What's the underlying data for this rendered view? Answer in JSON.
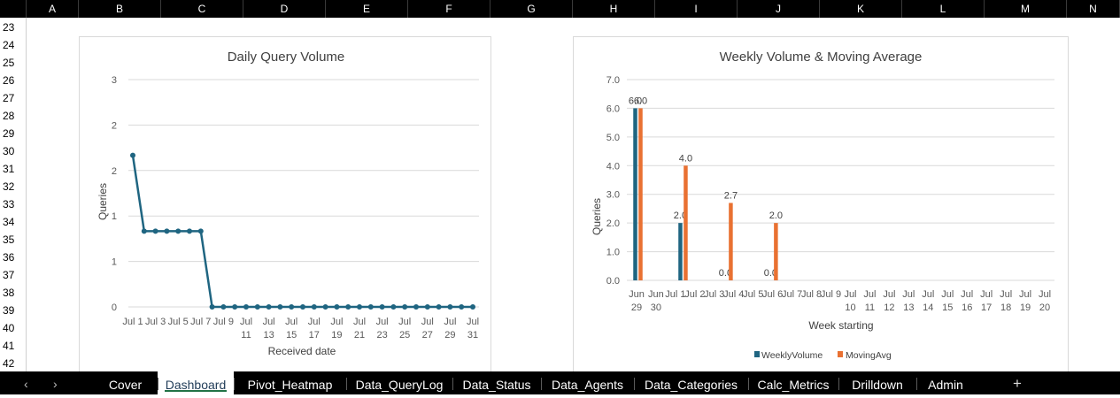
{
  "columns": [
    "A",
    "B",
    "C",
    "D",
    "E",
    "F",
    "G",
    "H",
    "I",
    "J",
    "K",
    "L",
    "M",
    "N"
  ],
  "rows": [
    "23",
    "24",
    "25",
    "26",
    "27",
    "28",
    "29",
    "30",
    "31",
    "32",
    "33",
    "34",
    "35",
    "36",
    "37",
    "38",
    "39",
    "40",
    "41",
    "42"
  ],
  "chart1": {
    "title": "Daily Query Volume",
    "xlabel": "Received date",
    "ylabel": "Queries"
  },
  "chart2": {
    "title": "Weekly Volume & Moving Average",
    "xlabel": "Week starting",
    "ylabel": "Queries",
    "legend": [
      "WeeklyVolume",
      "MovingAvg"
    ]
  },
  "chart_data": [
    {
      "type": "line",
      "title": "Daily Query Volume",
      "xlabel": "Received date",
      "ylabel": "Queries",
      "ylim": [
        0,
        3
      ],
      "y_ticks": [
        "0",
        "1",
        "1",
        "2",
        "2",
        "3"
      ],
      "x_tick_labels": [
        [
          "Jul 1"
        ],
        [
          "Jul 3"
        ],
        [
          "Jul 5"
        ],
        [
          "Jul 7"
        ],
        [
          "Jul 9"
        ],
        [
          "Jul",
          "11"
        ],
        [
          "Jul",
          "13"
        ],
        [
          "Jul",
          "15"
        ],
        [
          "Jul",
          "17"
        ],
        [
          "Jul",
          "19"
        ],
        [
          "Jul",
          "21"
        ],
        [
          "Jul",
          "23"
        ],
        [
          "Jul",
          "25"
        ],
        [
          "Jul",
          "27"
        ],
        [
          "Jul",
          "29"
        ],
        [
          "Jul",
          "31"
        ]
      ],
      "x": [
        "Jul 1",
        "Jul 2",
        "Jul 3",
        "Jul 4",
        "Jul 5",
        "Jul 6",
        "Jul 7",
        "Jul 8",
        "Jul 9",
        "Jul 10",
        "Jul 11",
        "Jul 12",
        "Jul 13",
        "Jul 14",
        "Jul 15",
        "Jul 16",
        "Jul 17",
        "Jul 18",
        "Jul 19",
        "Jul 20",
        "Jul 21",
        "Jul 22",
        "Jul 23",
        "Jul 24",
        "Jul 25",
        "Jul 26",
        "Jul 27",
        "Jul 28",
        "Jul 29",
        "Jul 30",
        "Jul 31"
      ],
      "values": [
        2,
        1,
        1,
        1,
        1,
        1,
        1,
        0,
        0,
        0,
        0,
        0,
        0,
        0,
        0,
        0,
        0,
        0,
        0,
        0,
        0,
        0,
        0,
        0,
        0,
        0,
        0,
        0,
        0,
        0,
        0
      ],
      "color": "#1f6581",
      "grid": true
    },
    {
      "type": "bar",
      "title": "Weekly Volume & Moving Average",
      "xlabel": "Week starting",
      "ylabel": "Queries",
      "ylim": [
        0,
        7
      ],
      "y_ticks": [
        "0.0",
        "1.0",
        "2.0",
        "3.0",
        "4.0",
        "5.0",
        "6.0",
        "7.0"
      ],
      "categories": [
        [
          "Jun",
          "29"
        ],
        [
          "Jun",
          "30"
        ],
        [
          "Jul 1"
        ],
        [
          "Jul 2"
        ],
        [
          "Jul 3"
        ],
        [
          "Jul 4"
        ],
        [
          "Jul 5"
        ],
        [
          "Jul 6"
        ],
        [
          "Jul 7"
        ],
        [
          "Jul 8"
        ],
        [
          "Jul 9"
        ],
        [
          "Jul",
          "10"
        ],
        [
          "Jul",
          "11"
        ],
        [
          "Jul",
          "12"
        ],
        [
          "Jul",
          "13"
        ],
        [
          "Jul",
          "14"
        ],
        [
          "Jul",
          "15"
        ],
        [
          "Jul",
          "16"
        ],
        [
          "Jul",
          "17"
        ],
        [
          "Jul",
          "18"
        ],
        [
          "Jul",
          "19"
        ],
        [
          "Jul",
          "20"
        ]
      ],
      "series": [
        {
          "name": "WeeklyVolume",
          "color": "#1f6581",
          "points": [
            [
              0,
              6,
              "6.0"
            ],
            [
              7,
              2,
              "2.0"
            ],
            [
              14,
              0,
              "0.0"
            ],
            [
              21,
              0,
              "0.0"
            ]
          ]
        },
        {
          "name": "MovingAvg",
          "color": "#e97132",
          "points": [
            [
              0,
              6,
              "6.0"
            ],
            [
              7,
              4,
              "4.0"
            ],
            [
              14,
              2.7,
              "2.7"
            ],
            [
              21,
              2,
              "2.0"
            ]
          ]
        }
      ],
      "legend": "bottom",
      "grid": true
    }
  ],
  "sheet_tabs": {
    "prev": "‹",
    "next": "›",
    "items": [
      "Cover",
      "Dashboard",
      "Pivot_Heatmap",
      "Data_QueryLog",
      "Data_Status",
      "Data_Agents",
      "Data_Categories",
      "Calc_Metrics",
      "Drilldown",
      "Admin"
    ],
    "active": "Dashboard",
    "add": "+"
  },
  "colors": {
    "header_bg": "#000000",
    "grid": "#d9d9d9",
    "accent": "#217346"
  }
}
